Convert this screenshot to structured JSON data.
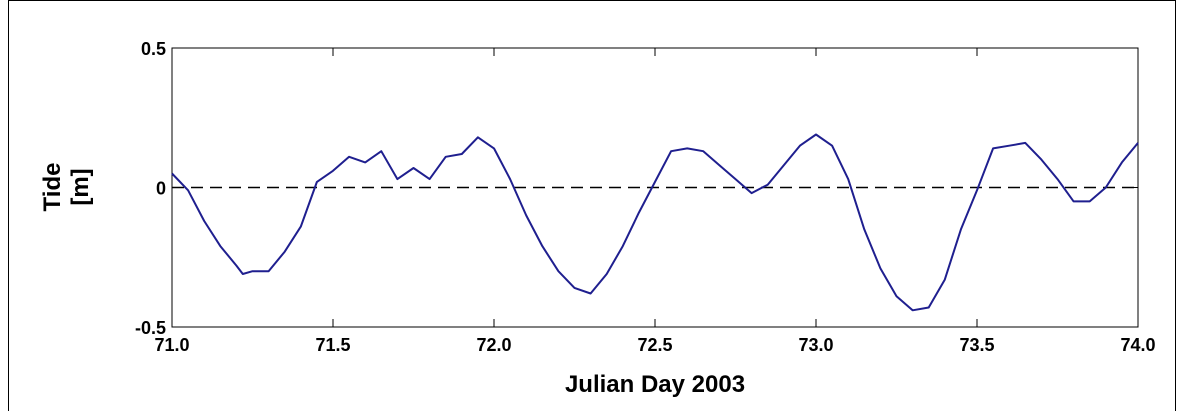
{
  "chart_data": {
    "type": "line",
    "xlabel": "Julian Day 2003",
    "ylabel": [
      "Tide",
      "[m]"
    ],
    "x": [
      71.0,
      71.05,
      71.1,
      71.15,
      71.2,
      71.22,
      71.25,
      71.3,
      71.35,
      71.4,
      71.45,
      71.5,
      71.55,
      71.6,
      71.65,
      71.7,
      71.75,
      71.8,
      71.85,
      71.9,
      71.95,
      72.0,
      72.05,
      72.1,
      72.15,
      72.2,
      72.25,
      72.3,
      72.35,
      72.4,
      72.45,
      72.5,
      72.55,
      72.6,
      72.65,
      72.7,
      72.75,
      72.8,
      72.85,
      72.9,
      72.95,
      73.0,
      73.05,
      73.1,
      73.15,
      73.2,
      73.25,
      73.3,
      73.35,
      73.4,
      73.45,
      73.5,
      73.55,
      73.6,
      73.65,
      73.7,
      73.75,
      73.8,
      73.85,
      73.9,
      73.95,
      74.0
    ],
    "series": [
      {
        "color": "#1f1f8f",
        "values": [
          0.05,
          -0.01,
          -0.12,
          -0.21,
          -0.28,
          -0.31,
          -0.3,
          -0.3,
          -0.23,
          -0.14,
          0.02,
          0.06,
          0.11,
          0.09,
          0.13,
          0.03,
          0.07,
          0.03,
          0.11,
          0.12,
          0.18,
          0.14,
          0.03,
          -0.1,
          -0.21,
          -0.3,
          -0.36,
          -0.38,
          -0.31,
          -0.21,
          -0.09,
          0.02,
          0.13,
          0.14,
          0.13,
          0.08,
          0.03,
          -0.02,
          0.01,
          0.08,
          0.15,
          0.19,
          0.15,
          0.03,
          -0.15,
          -0.29,
          -0.39,
          -0.44,
          -0.43,
          -0.33,
          -0.15,
          -0.01,
          0.14,
          0.15,
          0.16,
          0.1,
          0.03,
          -0.05,
          -0.05,
          0.0,
          0.09,
          0.16
        ]
      }
    ],
    "hline": 0,
    "xlim": [
      71.0,
      74.0
    ],
    "xticks": [
      {
        "value": 71.0,
        "label": "71.0"
      },
      {
        "value": 71.5,
        "label": "71.5"
      },
      {
        "value": 72.0,
        "label": "72.0"
      },
      {
        "value": 72.5,
        "label": "72.5"
      },
      {
        "value": 73.0,
        "label": "73.0"
      },
      {
        "value": 73.5,
        "label": "73.5"
      },
      {
        "value": 74.0,
        "label": "74.0"
      }
    ],
    "ylim": [
      -0.5,
      0.5
    ],
    "yticks": [
      -0.5,
      0,
      0.5
    ]
  }
}
